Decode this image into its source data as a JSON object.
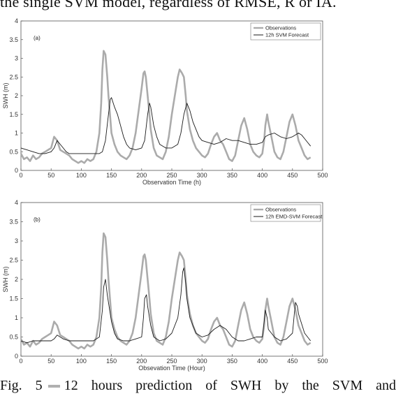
{
  "top_text": "the single SVM model, regardless of RMSE, R or IA.",
  "caption": {
    "prefix": "Fig. 5",
    "text": "12 hours prediction of SWH by the SVM and"
  },
  "colors": {
    "observations": "#ababab",
    "forecast": "#1a1a1a",
    "axis": "#555555"
  },
  "chart_data": [
    {
      "type": "line",
      "panel_label": "(a)",
      "xlabel": "Observation Time (h)",
      "ylabel": "SWH (m)",
      "xlim": [
        0,
        500
      ],
      "ylim": [
        0,
        4
      ],
      "xticks": [
        0,
        50,
        100,
        150,
        200,
        250,
        300,
        350,
        400,
        450,
        500
      ],
      "xtick_labels": [
        "0",
        "50",
        "100",
        "150",
        "200",
        "250",
        "300",
        "350",
        "400",
        "450",
        "500"
      ],
      "yticks": [
        0,
        0.5,
        1,
        1.5,
        2,
        2.5,
        3,
        3.5,
        4
      ],
      "ytick_labels": [
        "0",
        "0.5",
        "1",
        "1.5",
        "2",
        "2.5",
        "3",
        "3.5",
        "4"
      ],
      "legend_position": "top-right",
      "series": [
        {
          "name": "Observations",
          "x": [
            0,
            5,
            10,
            15,
            20,
            25,
            30,
            35,
            40,
            45,
            50,
            55,
            60,
            65,
            70,
            75,
            80,
            85,
            90,
            95,
            100,
            105,
            110,
            115,
            120,
            125,
            130,
            133,
            135,
            137,
            140,
            143,
            145,
            148,
            150,
            155,
            160,
            165,
            170,
            175,
            180,
            185,
            190,
            195,
            200,
            203,
            205,
            207,
            210,
            213,
            215,
            220,
            225,
            230,
            235,
            240,
            245,
            250,
            255,
            260,
            263,
            265,
            267,
            270,
            273,
            275,
            280,
            285,
            290,
            295,
            300,
            305,
            310,
            315,
            320,
            325,
            330,
            335,
            340,
            345,
            350,
            355,
            360,
            365,
            370,
            375,
            380,
            385,
            390,
            395,
            400,
            403,
            405,
            408,
            410,
            415,
            420,
            425,
            430,
            435,
            440,
            445,
            450,
            455,
            460,
            465,
            470,
            475,
            480
          ],
          "y": [
            0.45,
            0.3,
            0.35,
            0.25,
            0.4,
            0.3,
            0.35,
            0.45,
            0.5,
            0.55,
            0.6,
            0.9,
            0.8,
            0.55,
            0.5,
            0.45,
            0.4,
            0.3,
            0.25,
            0.2,
            0.25,
            0.2,
            0.3,
            0.25,
            0.3,
            0.5,
            1.0,
            1.8,
            2.7,
            3.2,
            3.1,
            2.5,
            2.0,
            1.4,
            1.0,
            0.7,
            0.5,
            0.4,
            0.35,
            0.3,
            0.4,
            0.6,
            1.0,
            1.6,
            2.2,
            2.6,
            2.65,
            2.5,
            2.0,
            1.5,
            1.1,
            0.6,
            0.4,
            0.35,
            0.3,
            0.5,
            0.9,
            1.5,
            2.0,
            2.5,
            2.7,
            2.65,
            2.6,
            2.5,
            2.0,
            1.6,
            1.1,
            0.8,
            0.6,
            0.5,
            0.4,
            0.35,
            0.45,
            0.7,
            0.9,
            1.0,
            0.8,
            0.7,
            0.5,
            0.3,
            0.25,
            0.4,
            0.8,
            1.2,
            1.4,
            1.1,
            0.7,
            0.5,
            0.4,
            0.35,
            0.45,
            0.8,
            1.2,
            1.5,
            1.3,
            0.9,
            0.5,
            0.35,
            0.3,
            0.5,
            0.9,
            1.3,
            1.5,
            1.2,
            0.8,
            0.6,
            0.4,
            0.3,
            0.35
          ]
        },
        {
          "name": "12h SVM Forecast",
          "x": [
            0,
            10,
            20,
            30,
            40,
            50,
            55,
            60,
            65,
            70,
            75,
            80,
            90,
            100,
            110,
            120,
            130,
            135,
            140,
            145,
            148,
            150,
            155,
            160,
            165,
            170,
            175,
            180,
            190,
            200,
            205,
            210,
            213,
            215,
            220,
            225,
            230,
            240,
            250,
            260,
            265,
            270,
            275,
            280,
            285,
            290,
            295,
            300,
            310,
            320,
            330,
            340,
            350,
            360,
            370,
            380,
            390,
            400,
            405,
            410,
            420,
            430,
            440,
            450,
            460,
            465,
            470,
            475,
            480
          ],
          "y": [
            0.6,
            0.55,
            0.5,
            0.45,
            0.45,
            0.5,
            0.6,
            0.8,
            0.7,
            0.6,
            0.5,
            0.45,
            0.45,
            0.45,
            0.45,
            0.45,
            0.45,
            0.5,
            0.8,
            1.5,
            1.9,
            1.95,
            1.7,
            1.5,
            1.2,
            0.9,
            0.7,
            0.6,
            0.55,
            0.6,
            0.8,
            1.5,
            1.8,
            1.7,
            1.2,
            0.9,
            0.7,
            0.6,
            0.6,
            0.7,
            1.0,
            1.5,
            1.8,
            1.6,
            1.3,
            1.1,
            0.9,
            0.8,
            0.75,
            0.7,
            0.75,
            0.85,
            0.8,
            0.8,
            0.75,
            0.7,
            0.7,
            0.75,
            0.9,
            0.95,
            1.0,
            0.9,
            0.85,
            0.9,
            1.0,
            0.95,
            0.85,
            0.75,
            0.65
          ]
        }
      ]
    },
    {
      "type": "line",
      "panel_label": "(b)",
      "xlabel": "Obsevation Time (Hour)",
      "ylabel": "SWH (m)",
      "xlim": [
        0,
        500
      ],
      "ylim": [
        0,
        4
      ],
      "xticks": [
        0,
        50,
        100,
        150,
        200,
        250,
        300,
        350,
        400,
        450,
        500
      ],
      "xtick_labels": [
        "0",
        "50",
        "100",
        "150",
        "200",
        "250",
        "300",
        "350",
        "400",
        "450",
        "500"
      ],
      "yticks": [
        0,
        0.5,
        1,
        1.5,
        2,
        2.5,
        3,
        3.5,
        4
      ],
      "ytick_labels": [
        "0",
        "0.5",
        "1",
        "1.5",
        "2",
        "2.5",
        "3",
        "3.5",
        "4"
      ],
      "legend_position": "top-right",
      "series": [
        {
          "name": "Observations",
          "x": [
            0,
            5,
            10,
            15,
            20,
            25,
            30,
            35,
            40,
            45,
            50,
            55,
            60,
            65,
            70,
            75,
            80,
            85,
            90,
            95,
            100,
            105,
            110,
            115,
            120,
            125,
            130,
            133,
            135,
            137,
            140,
            143,
            145,
            148,
            150,
            155,
            160,
            165,
            170,
            175,
            180,
            185,
            190,
            195,
            200,
            203,
            205,
            207,
            210,
            213,
            215,
            220,
            225,
            230,
            235,
            240,
            245,
            250,
            255,
            260,
            263,
            265,
            267,
            270,
            273,
            275,
            280,
            285,
            290,
            295,
            300,
            305,
            310,
            315,
            320,
            325,
            330,
            335,
            340,
            345,
            350,
            355,
            360,
            365,
            370,
            375,
            380,
            385,
            390,
            395,
            400,
            403,
            405,
            408,
            410,
            415,
            420,
            425,
            430,
            435,
            440,
            445,
            450,
            455,
            460,
            465,
            470,
            475,
            480
          ],
          "y": [
            0.45,
            0.3,
            0.35,
            0.25,
            0.4,
            0.3,
            0.35,
            0.45,
            0.5,
            0.55,
            0.6,
            0.9,
            0.8,
            0.55,
            0.5,
            0.45,
            0.4,
            0.3,
            0.25,
            0.2,
            0.25,
            0.2,
            0.3,
            0.25,
            0.3,
            0.5,
            1.0,
            1.8,
            2.7,
            3.2,
            3.1,
            2.5,
            2.0,
            1.4,
            1.0,
            0.7,
            0.5,
            0.4,
            0.35,
            0.3,
            0.4,
            0.6,
            1.0,
            1.6,
            2.2,
            2.6,
            2.65,
            2.5,
            2.0,
            1.5,
            1.1,
            0.6,
            0.4,
            0.35,
            0.3,
            0.5,
            0.9,
            1.5,
            2.0,
            2.5,
            2.7,
            2.65,
            2.6,
            2.5,
            2.0,
            1.6,
            1.1,
            0.8,
            0.6,
            0.5,
            0.4,
            0.35,
            0.45,
            0.7,
            0.9,
            1.0,
            0.8,
            0.7,
            0.5,
            0.3,
            0.25,
            0.4,
            0.8,
            1.2,
            1.4,
            1.1,
            0.7,
            0.5,
            0.4,
            0.35,
            0.45,
            0.8,
            1.2,
            1.5,
            1.3,
            0.9,
            0.5,
            0.35,
            0.3,
            0.5,
            0.9,
            1.3,
            1.5,
            1.2,
            0.8,
            0.6,
            0.4,
            0.3,
            0.35
          ]
        },
        {
          "name": "12h EMD-SVM Forecast",
          "x": [
            0,
            10,
            20,
            30,
            40,
            50,
            55,
            60,
            65,
            70,
            80,
            90,
            100,
            110,
            120,
            130,
            135,
            137,
            140,
            143,
            145,
            148,
            150,
            155,
            160,
            170,
            180,
            190,
            200,
            203,
            205,
            208,
            210,
            215,
            220,
            230,
            240,
            250,
            260,
            265,
            268,
            270,
            273,
            275,
            280,
            290,
            300,
            310,
            320,
            330,
            340,
            350,
            360,
            370,
            380,
            390,
            400,
            403,
            405,
            408,
            410,
            420,
            430,
            440,
            450,
            453,
            455,
            458,
            460,
            470,
            480
          ],
          "y": [
            0.4,
            0.35,
            0.4,
            0.4,
            0.4,
            0.4,
            0.45,
            0.55,
            0.5,
            0.45,
            0.4,
            0.4,
            0.4,
            0.4,
            0.4,
            0.5,
            1.2,
            1.8,
            2.0,
            1.6,
            1.4,
            1.1,
            0.9,
            0.6,
            0.45,
            0.4,
            0.4,
            0.45,
            0.5,
            1.0,
            1.5,
            1.6,
            1.3,
            0.8,
            0.5,
            0.4,
            0.45,
            0.6,
            1.0,
            1.6,
            2.2,
            2.3,
            1.9,
            1.5,
            1.0,
            0.6,
            0.5,
            0.55,
            0.7,
            0.8,
            0.7,
            0.5,
            0.4,
            0.4,
            0.45,
            0.5,
            0.5,
            0.9,
            1.2,
            1.0,
            0.7,
            0.5,
            0.4,
            0.45,
            0.6,
            1.1,
            1.4,
            1.3,
            1.1,
            0.6,
            0.4
          ]
        }
      ]
    }
  ]
}
